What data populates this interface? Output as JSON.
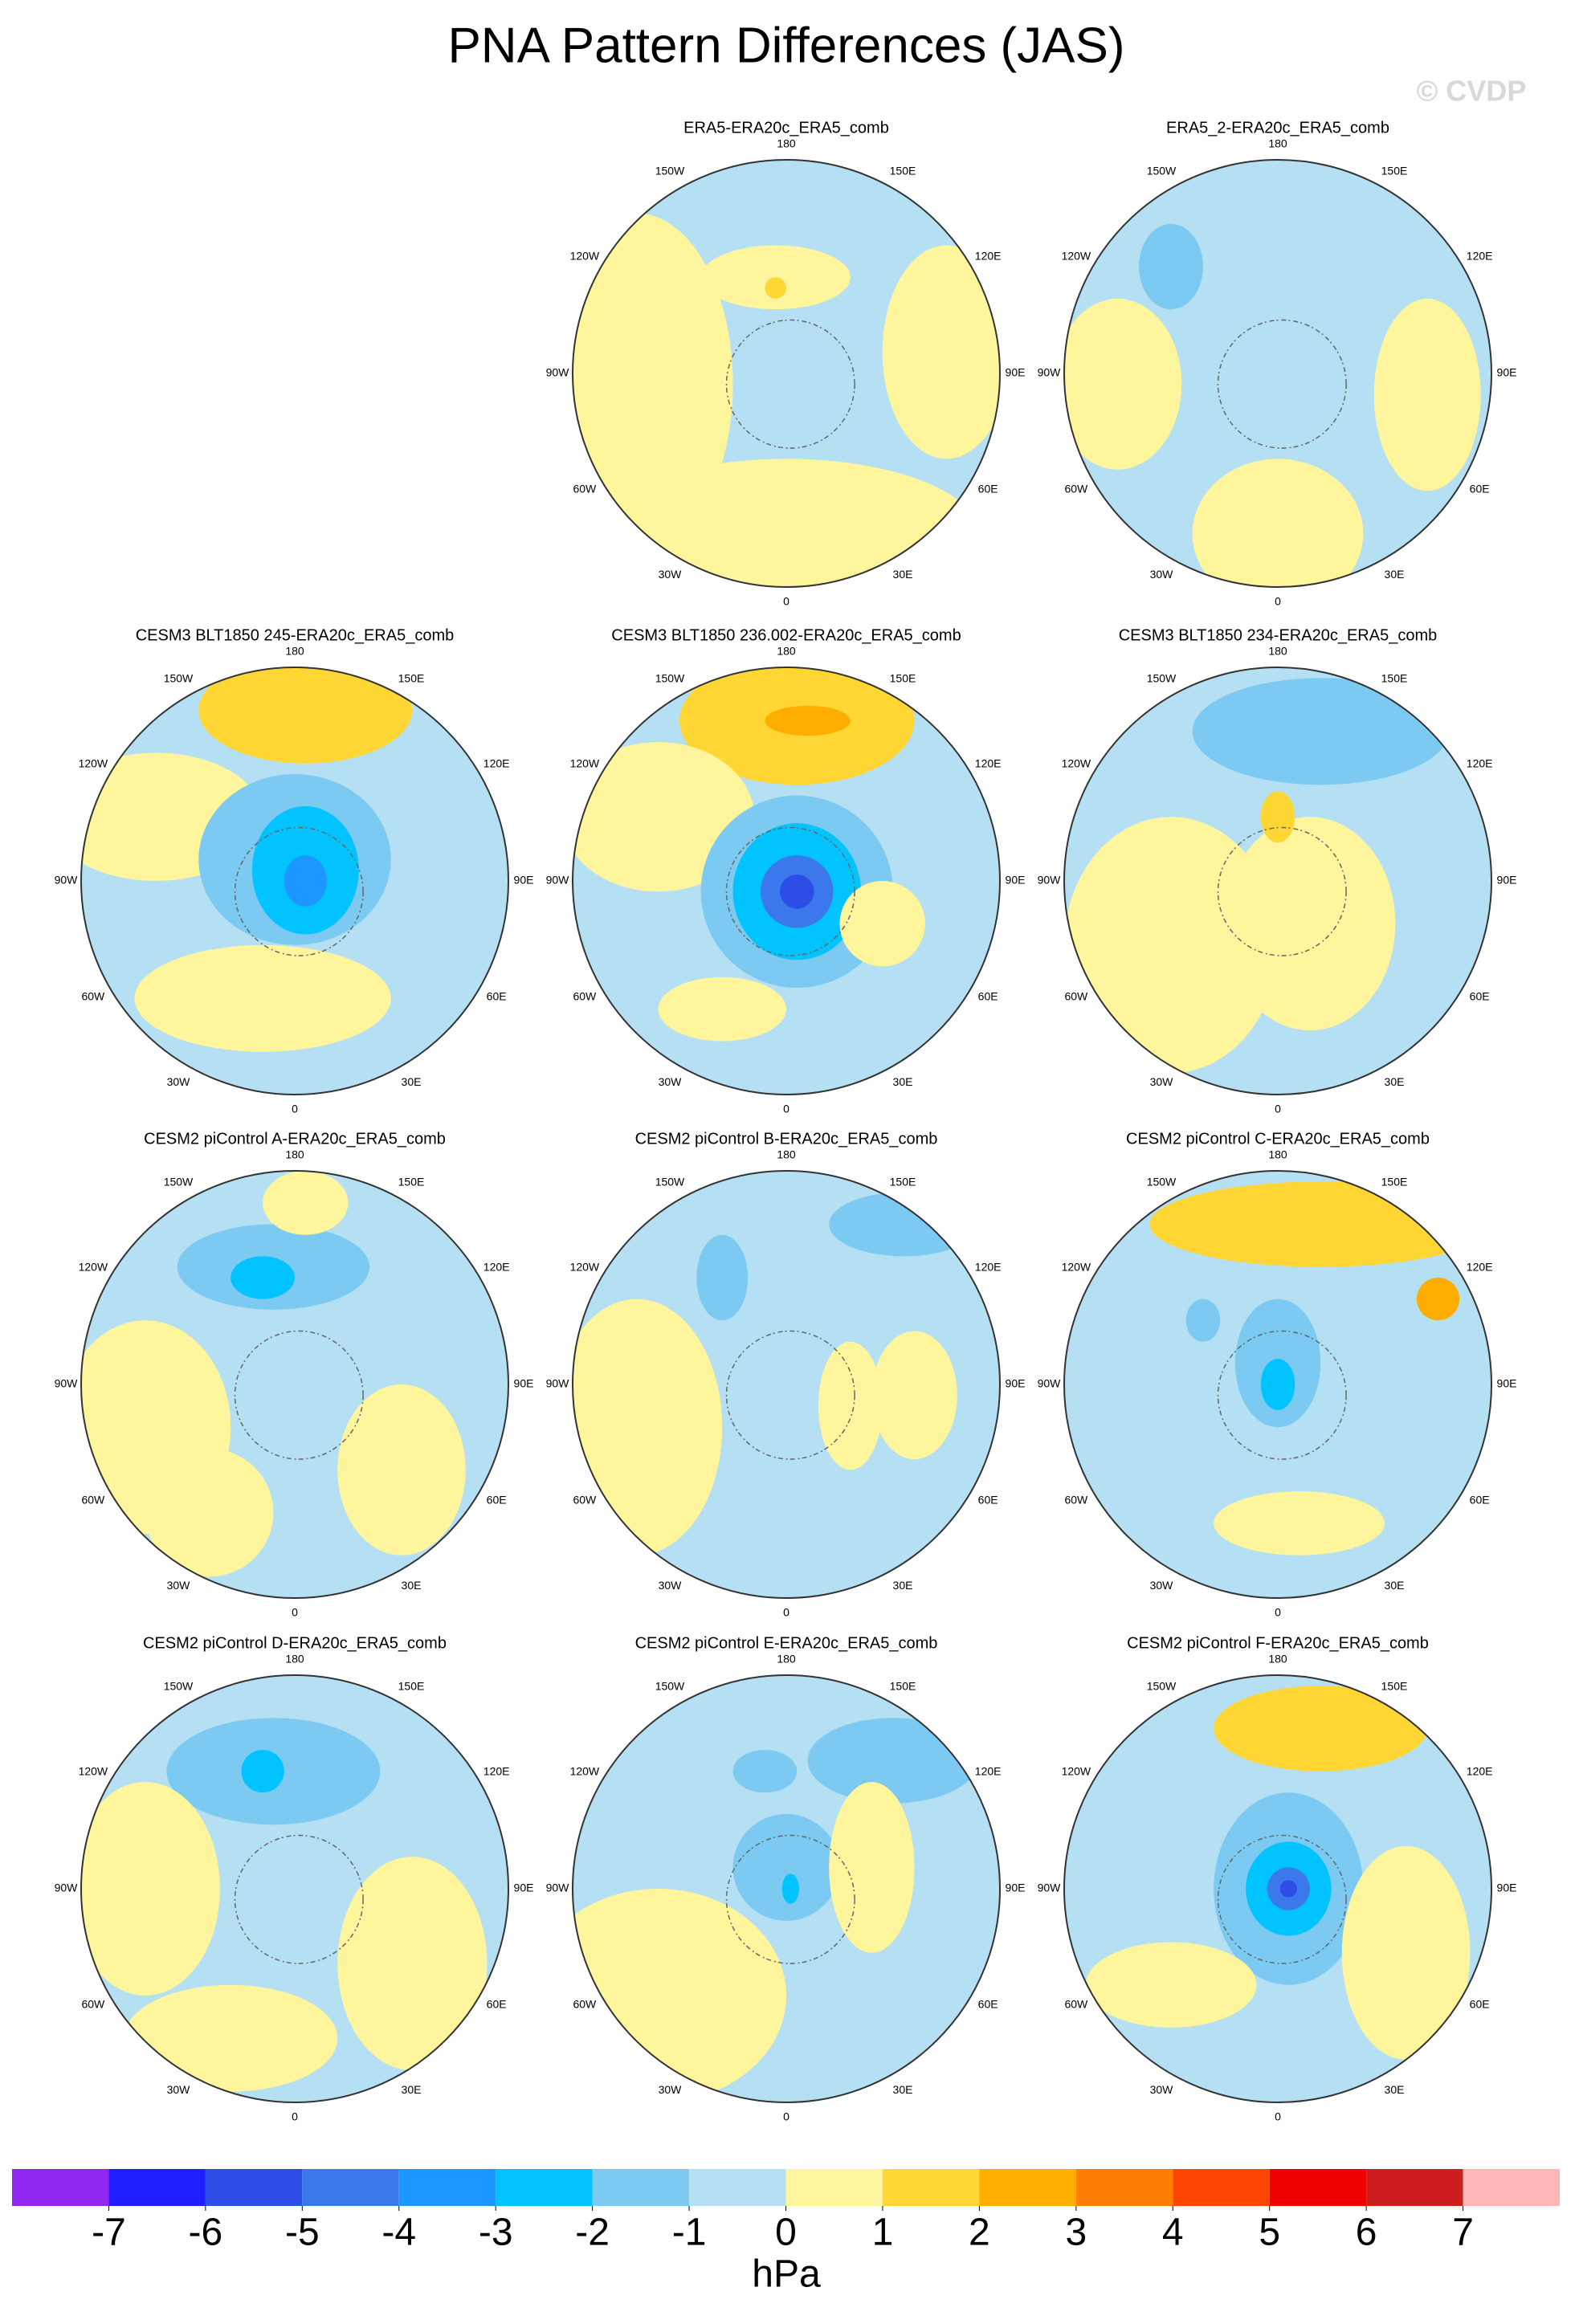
{
  "header": {
    "title": "PNA Pattern Differences (JAS)",
    "watermark": "© CVDP"
  },
  "lon_labels": [
    "180",
    "150E",
    "120E",
    "90E",
    "60E",
    "30E",
    "0",
    "30W",
    "60W",
    "90W",
    "120W",
    "150W"
  ],
  "panels": [
    {
      "title": "ERA5-ERA20c_ERA5_comb"
    },
    {
      "title": "ERA5_2-ERA20c_ERA5_comb"
    },
    {
      "title": "CESM3 BLT1850 245-ERA20c_ERA5_comb"
    },
    {
      "title": "CESM3 BLT1850 236.002-ERA20c_ERA5_comb"
    },
    {
      "title": "CESM3 BLT1850 234-ERA20c_ERA5_comb"
    },
    {
      "title": "CESM2 piControl A-ERA20c_ERA5_comb"
    },
    {
      "title": "CESM2 piControl B-ERA20c_ERA5_comb"
    },
    {
      "title": "CESM2 piControl C-ERA20c_ERA5_comb"
    },
    {
      "title": "CESM2 piControl D-ERA20c_ERA5_comb"
    },
    {
      "title": "CESM2 piControl E-ERA20c_ERA5_comb"
    },
    {
      "title": "CESM2 piControl F-ERA20c_ERA5_comb"
    }
  ],
  "colorbar": {
    "xlim": [
      -8,
      8
    ],
    "ticks": [
      -7,
      -6,
      -5,
      -4,
      -3,
      -2,
      -1,
      0,
      1,
      2,
      3,
      4,
      5,
      6,
      7
    ],
    "colors": [
      "#9126f0",
      "#1e1eff",
      "#2d4ee6",
      "#3a78eb",
      "#1e96ff",
      "#00c3ff",
      "#7ccaf2",
      "#b5dff3",
      "#fff59d",
      "#ffd633",
      "#ffad00",
      "#ff7d00",
      "#ff4500",
      "#ee0000",
      "#cd1e1e",
      "#ffb6b6"
    ],
    "unit": "hPa"
  }
}
